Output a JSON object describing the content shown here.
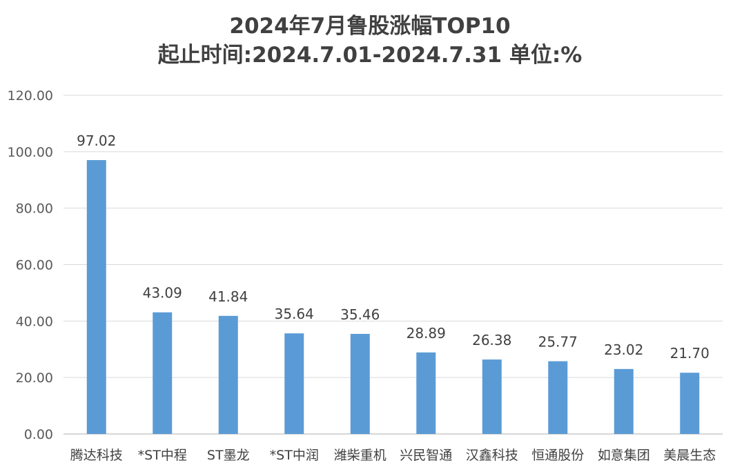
{
  "chart_data": {
    "type": "bar",
    "title": "2024年7月鲁股涨幅TOP10",
    "subtitle": "起止时间:2024.7.01-2024.7.31 单位:%",
    "categories": [
      "腾达科技",
      "*ST中程",
      "ST墨龙",
      "*ST中润",
      "潍柴重机",
      "兴民智通",
      "汉鑫科技",
      "恒通股份",
      "如意集团",
      "美晨生态"
    ],
    "values": [
      97.02,
      43.09,
      41.84,
      35.64,
      35.46,
      28.89,
      26.38,
      25.77,
      23.02,
      21.7
    ],
    "value_labels": [
      "97.02",
      "43.09",
      "41.84",
      "35.64",
      "35.46",
      "28.89",
      "26.38",
      "25.77",
      "23.02",
      "21.70"
    ],
    "ylim": [
      0,
      120
    ],
    "yticks": [
      0,
      20,
      40,
      60,
      80,
      100,
      120
    ],
    "ytick_labels": [
      "0.00",
      "20.00",
      "40.00",
      "60.00",
      "80.00",
      "100.00",
      "120.00"
    ],
    "xlabel": "",
    "ylabel": "",
    "grid": true,
    "bar_color": "#5b9bd5"
  }
}
